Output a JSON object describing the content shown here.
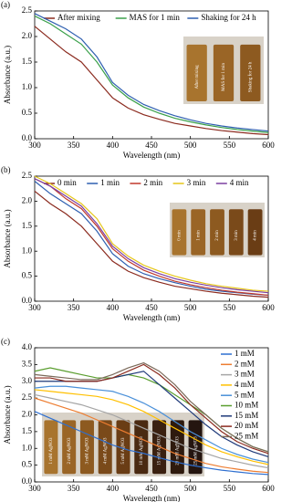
{
  "chart_data": [
    {
      "type": "line",
      "panel_label": "(a)",
      "x_label": "Wavelength (nm)",
      "y_label": "Absorbance (a.u.)",
      "legend": "top",
      "x": [
        300,
        320,
        340,
        360,
        380,
        400,
        420,
        440,
        460,
        480,
        500,
        520,
        540,
        560,
        580,
        600
      ],
      "xlim": [
        300,
        600
      ],
      "xticks": [
        300,
        350,
        400,
        450,
        500,
        550,
        600
      ],
      "ylim": [
        0,
        2.5
      ],
      "yticks": [
        {
          "value": 0,
          "label": "0.0"
        },
        0.5,
        {
          "value": 1,
          "label": "1.0"
        },
        1.5,
        {
          "value": 2,
          "label": "2.0"
        },
        2.5
      ],
      "inset_labels": [
        "After mixing",
        "MAS for 1 min",
        "Shaking for 24 h"
      ],
      "series": [
        {
          "name": "After mixing",
          "color": "#8b2a1e",
          "values": [
            2.2,
            1.95,
            1.7,
            1.5,
            1.15,
            0.8,
            0.6,
            0.47,
            0.38,
            0.3,
            0.25,
            0.2,
            0.16,
            0.13,
            0.1,
            0.08
          ]
        },
        {
          "name": "MAS for 1 min",
          "color": "#3aa04a",
          "values": [
            2.4,
            2.25,
            2.05,
            1.85,
            1.5,
            1.05,
            0.8,
            0.62,
            0.5,
            0.4,
            0.33,
            0.27,
            0.22,
            0.18,
            0.15,
            0.12
          ]
        },
        {
          "name": "Shaking for 24 h",
          "color": "#2e5fb0",
          "values": [
            2.45,
            2.3,
            2.15,
            1.95,
            1.6,
            1.1,
            0.85,
            0.67,
            0.55,
            0.45,
            0.37,
            0.3,
            0.25,
            0.21,
            0.18,
            0.15
          ]
        }
      ]
    },
    {
      "type": "line",
      "panel_label": "(b)",
      "x_label": "Wavelength (nm)",
      "y_label": "Absorbance (a.u.)",
      "legend": "top",
      "x": [
        300,
        320,
        340,
        360,
        380,
        400,
        420,
        440,
        460,
        480,
        500,
        520,
        540,
        560,
        580,
        600
      ],
      "xlim": [
        300,
        600
      ],
      "xticks": [
        300,
        350,
        400,
        450,
        500,
        550,
        600
      ],
      "ylim": [
        0,
        2.5
      ],
      "yticks": [
        {
          "value": 0,
          "label": "0.0"
        },
        0.5,
        {
          "value": 1,
          "label": "1.0"
        },
        1.5,
        {
          "value": 2,
          "label": "2.0"
        },
        2.5
      ],
      "inset_labels": [
        "0 min",
        "1 min",
        "2 min",
        "3 min",
        "4 min"
      ],
      "series": [
        {
          "name": "0 min",
          "color": "#8b2a1e",
          "values": [
            2.2,
            1.95,
            1.75,
            1.5,
            1.15,
            0.8,
            0.6,
            0.47,
            0.38,
            0.3,
            0.25,
            0.2,
            0.16,
            0.13,
            0.1,
            0.08
          ]
        },
        {
          "name": "1 min",
          "color": "#2e5fb0",
          "values": [
            2.4,
            2.15,
            1.95,
            1.75,
            1.4,
            0.95,
            0.7,
            0.55,
            0.45,
            0.37,
            0.3,
            0.24,
            0.2,
            0.17,
            0.14,
            0.12
          ]
        },
        {
          "name": "2 min",
          "color": "#c0392b",
          "values": [
            2.45,
            2.3,
            2.05,
            1.85,
            1.5,
            1.05,
            0.8,
            0.62,
            0.5,
            0.4,
            0.33,
            0.27,
            0.22,
            0.18,
            0.15,
            0.12
          ]
        },
        {
          "name": "3 min",
          "color": "#e6c619",
          "values": [
            2.5,
            2.35,
            2.15,
            1.95,
            1.65,
            1.15,
            0.9,
            0.72,
            0.6,
            0.5,
            0.42,
            0.35,
            0.3,
            0.26,
            0.22,
            0.2
          ]
        },
        {
          "name": "4 min",
          "color": "#7a3fa0",
          "values": [
            2.45,
            2.3,
            2.1,
            1.9,
            1.55,
            1.1,
            0.85,
            0.67,
            0.55,
            0.45,
            0.38,
            0.32,
            0.27,
            0.23,
            0.2,
            0.17
          ]
        }
      ]
    },
    {
      "type": "line",
      "panel_label": "(c)",
      "x_label": "Wavelength (nm)",
      "y_label": "Absorbance (a.u.)",
      "legend": "right",
      "x": [
        300,
        320,
        340,
        360,
        380,
        400,
        420,
        440,
        460,
        480,
        500,
        520,
        540,
        560,
        580,
        600
      ],
      "xlim": [
        300,
        600
      ],
      "xticks": [
        300,
        350,
        400,
        450,
        500,
        550,
        600
      ],
      "ylim": [
        0,
        4
      ],
      "yticks": [
        {
          "value": 0,
          "label": "0.0"
        },
        0.5,
        {
          "value": 1,
          "label": "1.0"
        },
        1.5,
        {
          "value": 2,
          "label": "2.0"
        },
        2.5,
        {
          "value": 3,
          "label": "3.0"
        },
        3.5,
        {
          "value": 4,
          "label": "4.0"
        }
      ],
      "inset_labels": [
        "1 mM AgNO3",
        "2 mM AgNO3",
        "3 mM AgNO3",
        "4 mM AgNO3",
        "5 mM AgNO3",
        "10 mM AgNO3",
        "15 mM AgNO3",
        "20 mM AgNO3",
        "25 mM AgNO3"
      ],
      "series": [
        {
          "name": "1 mM",
          "color": "#2e6fd0",
          "values": [
            2.1,
            1.9,
            1.7,
            1.5,
            1.3,
            1.1,
            0.95,
            0.85,
            0.72,
            0.6,
            0.5,
            0.42,
            0.35,
            0.3,
            0.25,
            0.22
          ]
        },
        {
          "name": "2 mM",
          "color": "#ed7d31",
          "values": [
            2.5,
            2.35,
            2.2,
            2.05,
            1.85,
            1.65,
            1.45,
            1.25,
            1.05,
            0.85,
            0.7,
            0.55,
            0.45,
            0.38,
            0.32,
            0.28
          ]
        },
        {
          "name": "3 mM",
          "color": "#a5a5a5",
          "values": [
            2.6,
            2.5,
            2.4,
            2.3,
            2.15,
            2.0,
            1.8,
            1.6,
            1.4,
            1.2,
            1.0,
            0.85,
            0.7,
            0.6,
            0.5,
            0.42
          ]
        },
        {
          "name": "4 mM",
          "color": "#ffc000",
          "values": [
            2.75,
            2.7,
            2.65,
            2.6,
            2.55,
            2.45,
            2.3,
            2.1,
            1.85,
            1.6,
            1.35,
            1.1,
            0.9,
            0.75,
            0.62,
            0.52
          ]
        },
        {
          "name": "5 mM",
          "color": "#4a90d9",
          "values": [
            2.8,
            2.85,
            2.85,
            2.8,
            2.75,
            2.7,
            2.55,
            2.35,
            2.1,
            1.8,
            1.5,
            1.25,
            1.0,
            0.82,
            0.68,
            0.58
          ]
        },
        {
          "name": "10 mM",
          "color": "#5a9e2f",
          "values": [
            3.3,
            3.4,
            3.3,
            3.2,
            3.1,
            3.1,
            3.2,
            3.1,
            2.9,
            2.6,
            2.3,
            2.0,
            1.6,
            1.3,
            1.05,
            0.9
          ]
        },
        {
          "name": "15 mM",
          "color": "#1f3a7a",
          "values": [
            3.0,
            3.0,
            3.0,
            3.0,
            3.0,
            3.1,
            3.2,
            3.3,
            2.9,
            2.5,
            2.1,
            1.7,
            1.35,
            1.1,
            0.9,
            0.75
          ]
        },
        {
          "name": "20 mM",
          "color": "#8b2a1e",
          "values": [
            3.1,
            3.1,
            3.0,
            3.0,
            3.0,
            3.1,
            3.3,
            3.5,
            3.2,
            2.8,
            2.3,
            1.9,
            1.5,
            1.2,
            1.0,
            0.85
          ]
        },
        {
          "name": "25 mM",
          "color": "#7b6a5a",
          "values": [
            3.2,
            3.15,
            3.1,
            3.05,
            3.05,
            3.2,
            3.4,
            3.55,
            3.3,
            2.9,
            2.4,
            2.0,
            1.6,
            1.3,
            1.05,
            0.9
          ]
        }
      ]
    }
  ]
}
